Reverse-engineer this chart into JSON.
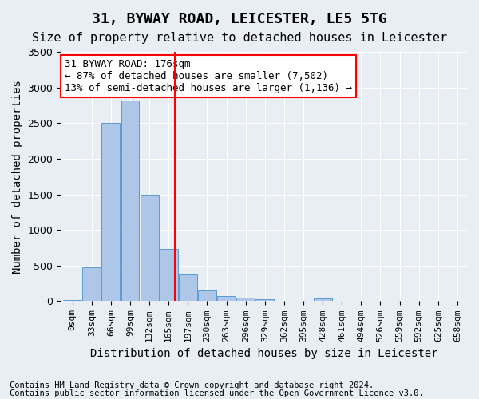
{
  "title": "31, BYWAY ROAD, LEICESTER, LE5 5TG",
  "subtitle": "Size of property relative to detached houses in Leicester",
  "xlabel": "Distribution of detached houses by size in Leicester",
  "ylabel": "Number of detached properties",
  "footnote1": "Contains HM Land Registry data © Crown copyright and database right 2024.",
  "footnote2": "Contains public sector information licensed under the Open Government Licence v3.0.",
  "bin_labels": [
    "0sqm",
    "33sqm",
    "66sqm",
    "99sqm",
    "132sqm",
    "165sqm",
    "197sqm",
    "230sqm",
    "263sqm",
    "296sqm",
    "329sqm",
    "362sqm",
    "395sqm",
    "428sqm",
    "461sqm",
    "494sqm",
    "526sqm",
    "559sqm",
    "592sqm",
    "625sqm",
    "658sqm"
  ],
  "bar_values": [
    20,
    470,
    2500,
    2820,
    1500,
    730,
    390,
    155,
    70,
    45,
    30,
    0,
    0,
    40,
    0,
    0,
    0,
    0,
    0,
    0
  ],
  "bar_color": "#aec6e8",
  "bar_edge_color": "#5b9bd5",
  "vline_x": 5.33,
  "vline_color": "red",
  "annotation_text": "31 BYWAY ROAD: 176sqm\n← 87% of detached houses are smaller (7,502)\n13% of semi-detached houses are larger (1,136) →",
  "annotation_box_color": "white",
  "annotation_box_edge": "red",
  "ylim": [
    0,
    3500
  ],
  "yticks": [
    0,
    500,
    1000,
    1500,
    2000,
    2500,
    3000,
    3500
  ],
  "bg_color": "#e8eef4",
  "plot_bg_color": "#e8eef4",
  "grid_color": "white",
  "title_fontsize": 13,
  "subtitle_fontsize": 11,
  "axis_label_fontsize": 10,
  "tick_fontsize": 8,
  "annotation_fontsize": 9,
  "footnote_fontsize": 7.5
}
